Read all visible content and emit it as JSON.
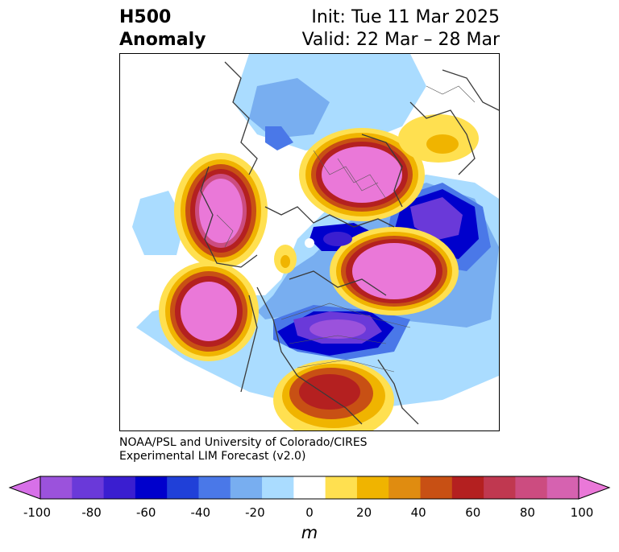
{
  "header": {
    "title_line1": "H500",
    "title_line2": "Anomaly",
    "init": "Init: Tue 11 Mar 2025",
    "valid": "Valid: 22 Mar – 28 Mar"
  },
  "credit": {
    "line1": "NOAA/PSL and University of Colorado/CIRES",
    "line2": "Experimental LIM Forecast (v2.0)"
  },
  "colorbar": {
    "unit": "m",
    "tick_labels": [
      "-100",
      "-80",
      "-60",
      "-40",
      "-20",
      "0",
      "20",
      "40",
      "60",
      "80",
      "100"
    ],
    "colors": [
      "#d770e8",
      "#9b52dc",
      "#6a39d9",
      "#3a1ed0",
      "#0000cc",
      "#2040d8",
      "#4a78e8",
      "#78aef0",
      "#aadcff",
      "#ffffff",
      "#ffe050",
      "#f0b400",
      "#e08c10",
      "#c85014",
      "#b42020",
      "#c03850",
      "#cc4c80",
      "#d662b0",
      "#ea78d8"
    ]
  }
}
